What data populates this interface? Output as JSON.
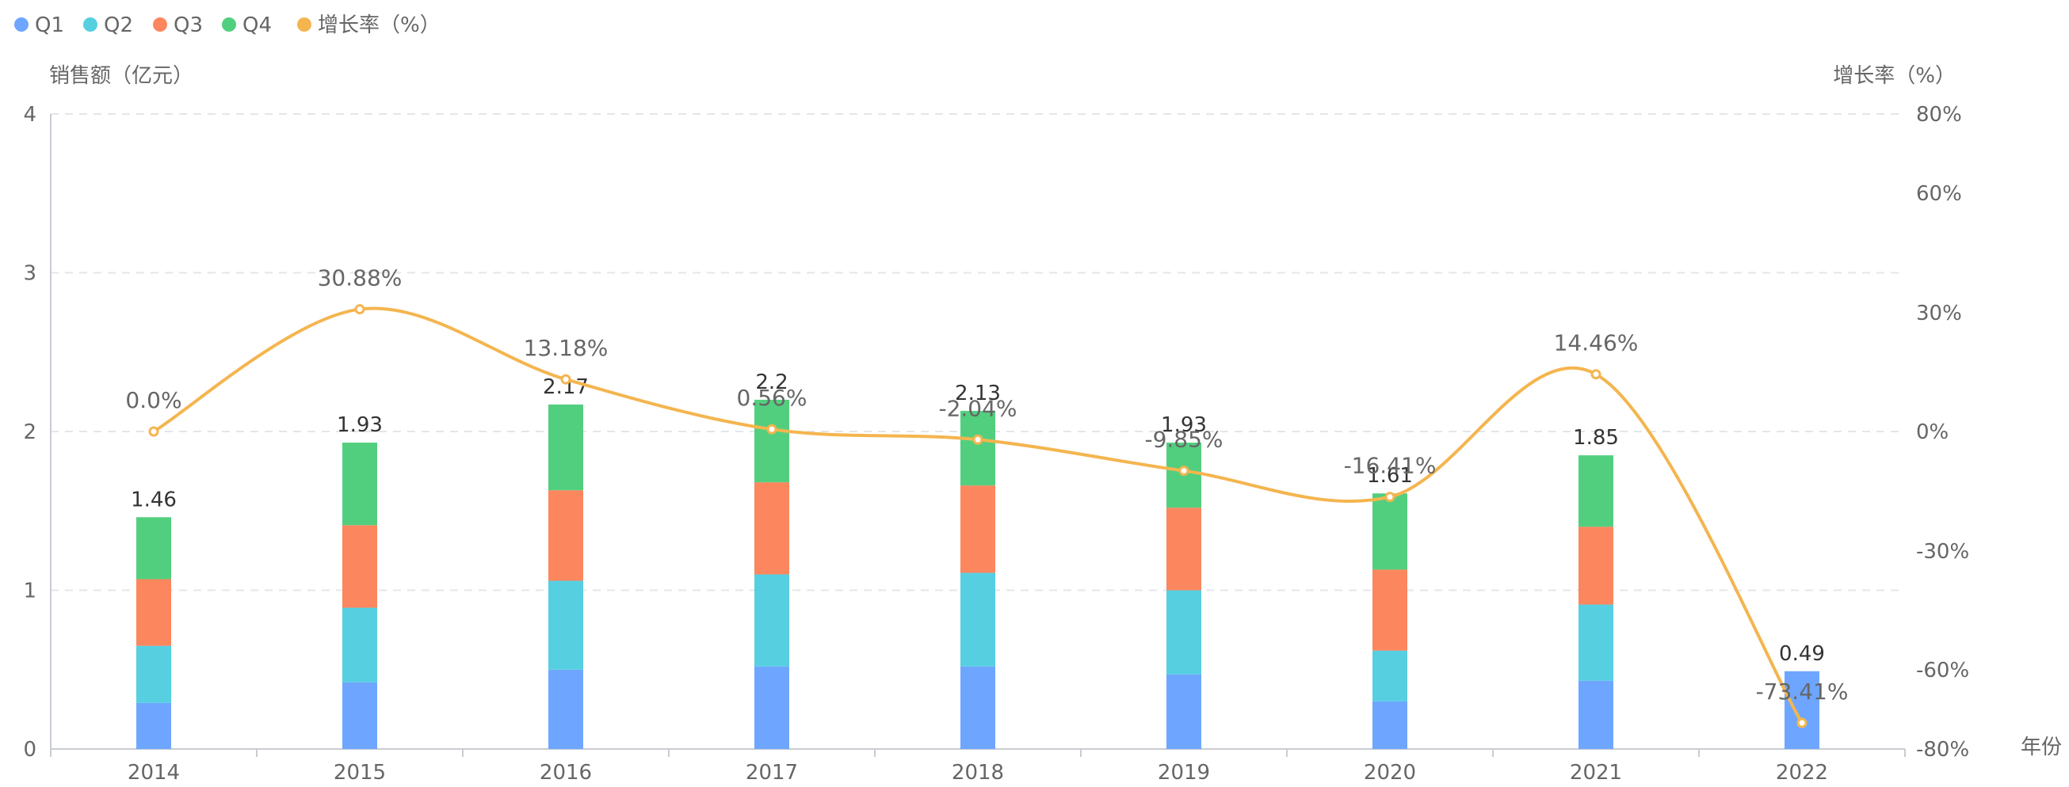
{
  "legend": [
    {
      "name": "Q1",
      "color": "#6ea6ff"
    },
    {
      "name": "Q2",
      "color": "#56cfe1"
    },
    {
      "name": "Q3",
      "color": "#fc865d"
    },
    {
      "name": "Q4",
      "color": "#52cf7e"
    },
    {
      "name": "增长率（%）",
      "color": "#f4b54f"
    }
  ],
  "axes": {
    "left_title": "销售额（亿元）",
    "right_title": "增长率（%）",
    "x_title": "年份",
    "left_ticks": [
      "0",
      "1",
      "2",
      "3",
      "4"
    ],
    "right_ticks": [
      "-80%",
      "-60%",
      "-30%",
      "0%",
      "30%",
      "60%",
      "80%"
    ]
  },
  "chart_data": {
    "type": "bar",
    "stacked": true,
    "categories": [
      "2014",
      "2015",
      "2016",
      "2017",
      "2018",
      "2019",
      "2020",
      "2021",
      "2022"
    ],
    "series": [
      {
        "name": "Q1",
        "color": "#6ea6ff",
        "values": [
          0.29,
          0.42,
          0.5,
          0.52,
          0.52,
          0.47,
          0.3,
          0.43,
          0.49
        ]
      },
      {
        "name": "Q2",
        "color": "#56cfe1",
        "values": [
          0.36,
          0.47,
          0.56,
          0.58,
          0.59,
          0.53,
          0.32,
          0.48,
          0
        ]
      },
      {
        "name": "Q3",
        "color": "#fc865d",
        "values": [
          0.42,
          0.52,
          0.57,
          0.58,
          0.55,
          0.52,
          0.51,
          0.49,
          0
        ]
      },
      {
        "name": "Q4",
        "color": "#52cf7e",
        "values": [
          0.39,
          0.52,
          0.54,
          0.52,
          0.47,
          0.41,
          0.48,
          0.45,
          0
        ]
      }
    ],
    "totals": [
      "1.46",
      "1.93",
      "2.17",
      "2.2",
      "2.13",
      "1.93",
      "1.61",
      "1.85",
      "0.49"
    ],
    "line": {
      "name": "增长率（%）",
      "color": "#f4b54f",
      "values": [
        0.0,
        30.88,
        13.18,
        0.56,
        -2.04,
        -9.85,
        -16.41,
        14.46,
        -73.41
      ],
      "labels": [
        "0.0%",
        "30.88%",
        "13.18%",
        "0.56%",
        "-2.04%",
        "-9.85%",
        "-16.41%",
        "14.46%",
        "-73.41%"
      ]
    },
    "ylim_left": [
      0,
      4
    ],
    "ylim_right": [
      -80,
      80
    ],
    "xlabel": "年份",
    "ylabel_left": "销售额（亿元）",
    "ylabel_right": "增长率（%）"
  }
}
